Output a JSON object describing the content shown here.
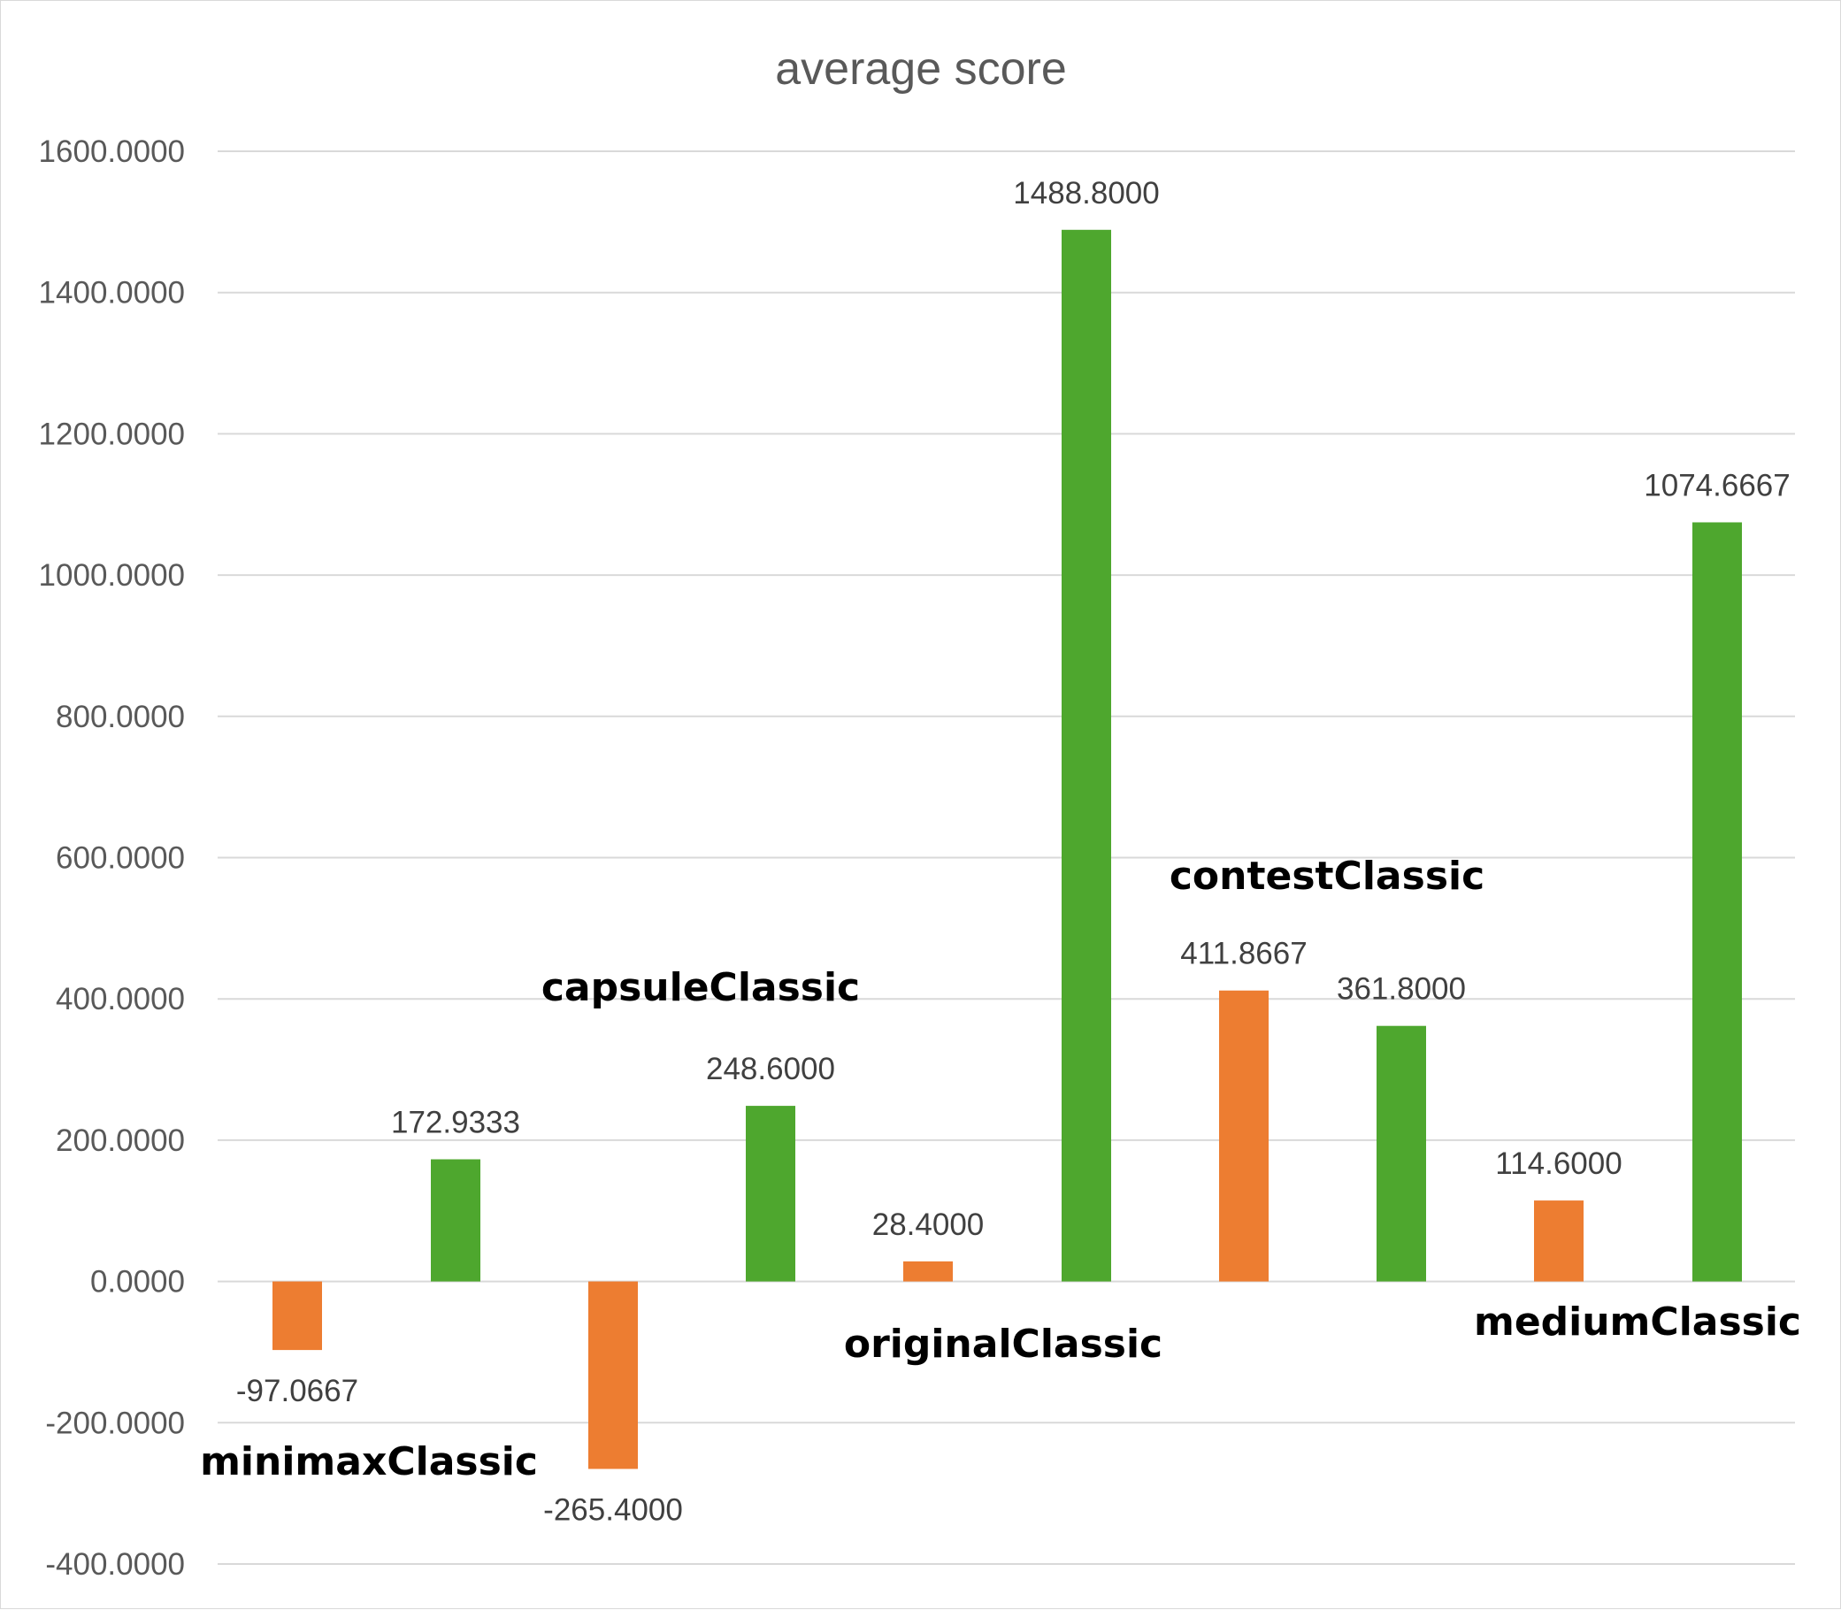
{
  "chart_data": {
    "type": "bar",
    "title": "average score",
    "xlabel": "",
    "ylabel": "",
    "ylim": [
      -400,
      1600
    ],
    "y_ticks": [
      "1600.0000",
      "1400.0000",
      "1200.0000",
      "1000.0000",
      "800.0000",
      "600.0000",
      "400.0000",
      "200.0000",
      "0.0000",
      "-200.0000",
      "-400.0000"
    ],
    "y_tick_values": [
      1600,
      1400,
      1200,
      1000,
      800,
      600,
      400,
      200,
      0,
      -200,
      -400
    ],
    "grid": true,
    "legend": "none",
    "bar_colors": [
      "#ED7D31",
      "#4EA72E"
    ],
    "bars": [
      {
        "value": -97.0667,
        "label": "-97.0667",
        "color": "#ED7D31"
      },
      {
        "value": 172.9333,
        "label": "172.9333",
        "color": "#4EA72E"
      },
      {
        "value": -265.4,
        "label": "-265.4000",
        "color": "#ED7D31"
      },
      {
        "value": 248.6,
        "label": "248.6000",
        "color": "#4EA72E"
      },
      {
        "value": 28.4,
        "label": "28.4000",
        "color": "#ED7D31"
      },
      {
        "value": 1488.8,
        "label": "1488.8000",
        "color": "#4EA72E"
      },
      {
        "value": 411.8667,
        "label": "411.8667",
        "color": "#ED7D31"
      },
      {
        "value": 361.8,
        "label": "361.8000",
        "color": "#4EA72E"
      },
      {
        "value": 114.6,
        "label": "114.6000",
        "color": "#ED7D31"
      },
      {
        "value": 1074.6667,
        "label": "1074.6667",
        "color": "#4EA72E"
      }
    ],
    "group_labels": [
      "minimaxClassic",
      "capsuleClassic",
      "originalClassic",
      "contestClassic",
      "mediumClassic"
    ]
  }
}
